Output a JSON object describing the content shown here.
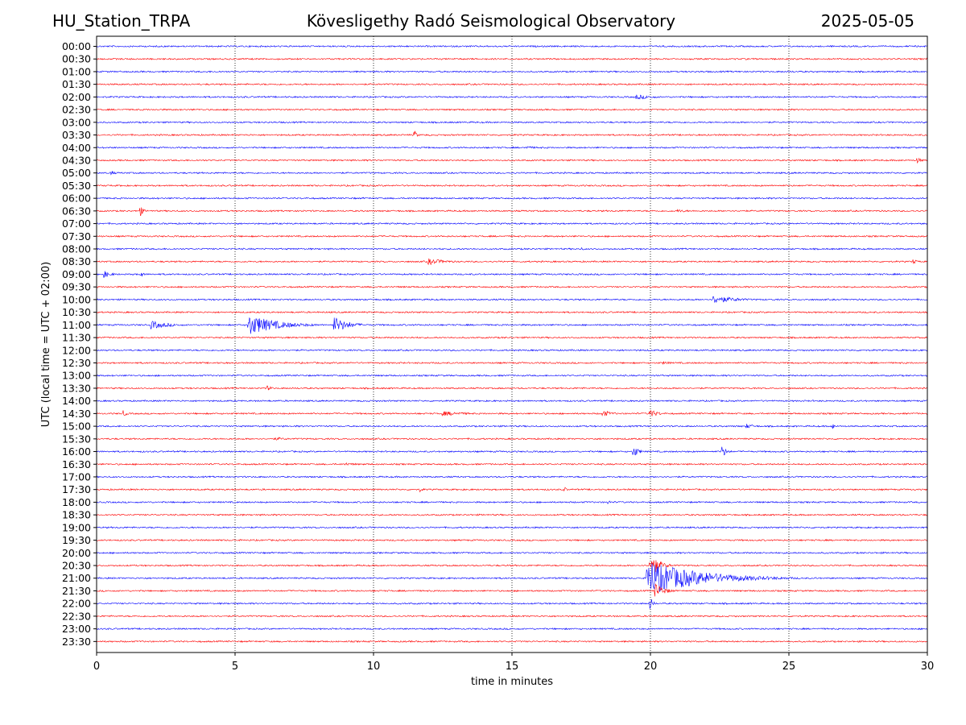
{
  "header": {
    "station": "HU_Station_TRPA",
    "title": "Kövesligethy Radó Seismological Observatory",
    "date": "2025-05-05"
  },
  "chart_data": {
    "type": "line",
    "title": "Kövesligethy Radó Seismological Observatory",
    "xlabel": "time in minutes",
    "ylabel": "UTC (local time = UTC + 02:00)",
    "xlim": [
      0,
      30
    ],
    "x_ticks": [
      0,
      5,
      10,
      15,
      20,
      25,
      30
    ],
    "grid": "vertical dotted lines at 5-minute intervals",
    "series_colors": [
      "#0000ff",
      "#ff0000"
    ],
    "rows": [
      "00:00",
      "00:30",
      "01:00",
      "01:30",
      "02:00",
      "02:30",
      "03:00",
      "03:30",
      "04:00",
      "04:30",
      "05:00",
      "05:30",
      "06:00",
      "06:30",
      "07:00",
      "07:30",
      "08:00",
      "08:30",
      "09:00",
      "09:30",
      "10:00",
      "10:30",
      "11:00",
      "11:30",
      "12:00",
      "12:30",
      "13:00",
      "13:30",
      "14:00",
      "14:30",
      "15:00",
      "15:30",
      "16:00",
      "16:30",
      "17:00",
      "17:30",
      "18:00",
      "18:30",
      "19:00",
      "19:30",
      "20:00",
      "20:30",
      "21:00",
      "21:30",
      "22:00",
      "22:30",
      "23:00",
      "23:30"
    ],
    "events": [
      {
        "row": "02:00",
        "minute": 19.5,
        "amplitude": 3,
        "duration_min": 2.0
      },
      {
        "row": "03:30",
        "minute": 11.5,
        "amplitude": 5,
        "duration_min": 0.3
      },
      {
        "row": "04:00",
        "minute": 15.5,
        "amplitude": 2,
        "duration_min": 1.5
      },
      {
        "row": "04:30",
        "minute": 29.6,
        "amplitude": 4,
        "duration_min": 0.6
      },
      {
        "row": "05:00",
        "minute": 0.5,
        "amplitude": 3,
        "duration_min": 0.6
      },
      {
        "row": "06:30",
        "minute": 1.6,
        "amplitude": 6,
        "duration_min": 0.3
      },
      {
        "row": "06:30",
        "minute": 21.0,
        "amplitude": 2,
        "duration_min": 1.5
      },
      {
        "row": "08:00",
        "minute": 17.5,
        "amplitude": 2,
        "duration_min": 0.5
      },
      {
        "row": "08:30",
        "minute": 12.0,
        "amplitude": 4,
        "duration_min": 2.0
      },
      {
        "row": "08:30",
        "minute": 29.5,
        "amplitude": 3,
        "duration_min": 0.5
      },
      {
        "row": "09:00",
        "minute": 0.3,
        "amplitude": 4,
        "duration_min": 0.8
      },
      {
        "row": "09:00",
        "minute": 1.6,
        "amplitude": 4,
        "duration_min": 0.3
      },
      {
        "row": "10:00",
        "minute": 22.3,
        "amplitude": 5,
        "duration_min": 2.5
      },
      {
        "row": "11:00",
        "minute": 2.0,
        "amplitude": 5,
        "duration_min": 2.0
      },
      {
        "row": "11:00",
        "minute": 5.5,
        "amplitude": 13,
        "duration_min": 3.0
      },
      {
        "row": "11:00",
        "minute": 8.6,
        "amplitude": 10,
        "duration_min": 1.5
      },
      {
        "row": "12:30",
        "minute": 20.5,
        "amplitude": 2,
        "duration_min": 1.0
      },
      {
        "row": "13:30",
        "minute": 6.2,
        "amplitude": 3,
        "duration_min": 0.5
      },
      {
        "row": "14:30",
        "minute": 1.0,
        "amplitude": 4,
        "duration_min": 0.3
      },
      {
        "row": "14:30",
        "minute": 12.5,
        "amplitude": 3,
        "duration_min": 3.0
      },
      {
        "row": "14:30",
        "minute": 18.3,
        "amplitude": 4,
        "duration_min": 1.0
      },
      {
        "row": "14:30",
        "minute": 20.0,
        "amplitude": 5,
        "duration_min": 1.0
      },
      {
        "row": "15:00",
        "minute": 23.5,
        "amplitude": 3,
        "duration_min": 1.0
      },
      {
        "row": "15:00",
        "minute": 26.6,
        "amplitude": 4,
        "duration_min": 0.2
      },
      {
        "row": "15:30",
        "minute": 6.5,
        "amplitude": 2,
        "duration_min": 1.5
      },
      {
        "row": "16:00",
        "minute": 19.4,
        "amplitude": 8,
        "duration_min": 0.5
      },
      {
        "row": "16:00",
        "minute": 22.6,
        "amplitude": 7,
        "duration_min": 0.5
      },
      {
        "row": "16:30",
        "minute": 9.0,
        "amplitude": 2,
        "duration_min": 1.5
      },
      {
        "row": "17:30",
        "minute": 11.7,
        "amplitude": 3,
        "duration_min": 0.4
      },
      {
        "row": "17:30",
        "minute": 16.9,
        "amplitude": 4,
        "duration_min": 0.2
      },
      {
        "row": "18:00",
        "minute": 18.5,
        "amplitude": 3,
        "duration_min": 0.2
      },
      {
        "row": "20:30",
        "minute": 20.0,
        "amplitude": 14,
        "duration_min": 1.0
      },
      {
        "row": "21:00",
        "minute": 19.9,
        "amplitude": 22,
        "duration_min": 5.5
      },
      {
        "row": "21:30",
        "minute": 20.2,
        "amplitude": 9,
        "duration_min": 1.0
      },
      {
        "row": "22:00",
        "minute": 20.0,
        "amplitude": 8,
        "duration_min": 0.3
      }
    ]
  }
}
